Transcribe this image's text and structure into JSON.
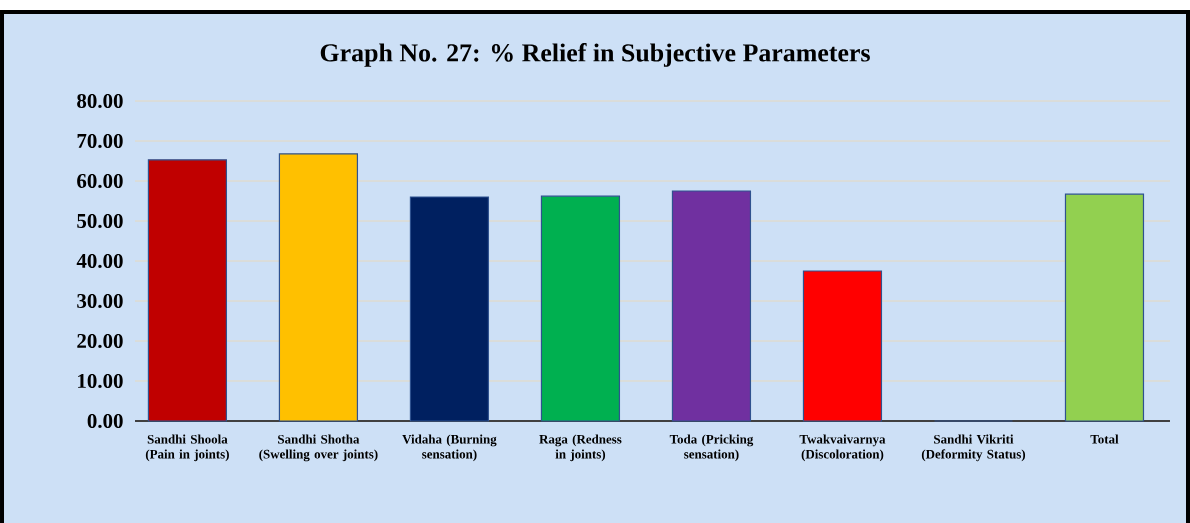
{
  "chart_data": {
    "type": "bar",
    "title": "Graph No. 27: % Relief in Subjective Parameters",
    "categories": [
      "Sandhi Shoola (Pain in joints)",
      "Sandhi Shotha (Swelling over joints)",
      "Vidaha (Burning sensation)",
      "Raga (Redness in joints)",
      "Toda (Pricking sensation)",
      "Twakvaivarnya (Discoloration)",
      "Sandhi Vikriti (Deformity Status)",
      "Total"
    ],
    "values": [
      65.3,
      66.8,
      56.0,
      56.2,
      57.5,
      37.5,
      0,
      56.7
    ],
    "colors": [
      "#c00000",
      "#ffc000",
      "#002060",
      "#00b050",
      "#7030a0",
      "#ff0000",
      "#4472c4",
      "#92d050"
    ],
    "ylim": [
      0,
      80
    ],
    "yticks": [
      {
        "value": 0,
        "label": "0.00"
      },
      {
        "value": 10,
        "label": "10.00"
      },
      {
        "value": 20,
        "label": "20.00"
      },
      {
        "value": 30,
        "label": "30.00"
      },
      {
        "value": 40,
        "label": "40.00"
      },
      {
        "value": 50,
        "label": "50.00"
      },
      {
        "value": 60,
        "label": "60.00"
      },
      {
        "value": 70,
        "label": "70.00"
      },
      {
        "value": 80,
        "label": "80.00"
      }
    ],
    "grid": "y"
  }
}
